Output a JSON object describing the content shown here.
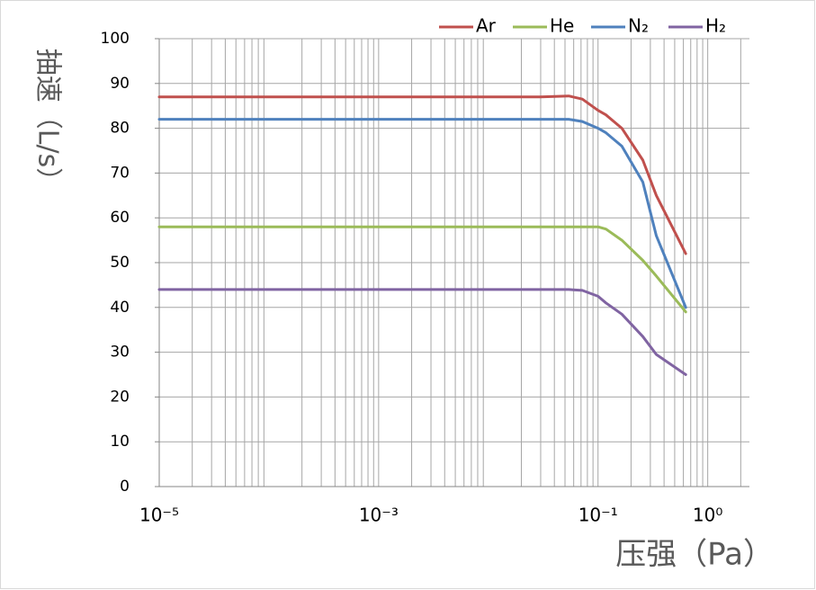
{
  "chart_data": {
    "type": "line",
    "y_label": "抽速（L/s）",
    "x_label": "压强（Pa）",
    "x": [
      1e-05,
      0.001,
      0.01,
      0.03,
      0.054,
      0.072,
      0.1,
      0.118,
      0.165,
      0.256,
      0.34,
      0.63
    ],
    "series": [
      {
        "name": "Ar",
        "color": "#c0504d",
        "values": [
          87,
          87,
          87,
          87,
          87.2,
          86.5,
          84,
          83,
          80,
          72.9,
          65,
          52
        ]
      },
      {
        "name": "He",
        "color": "#9bbb59",
        "values": [
          58,
          58,
          58,
          58,
          58,
          58,
          58,
          57.5,
          55,
          50.5,
          47,
          39
        ]
      },
      {
        "name": "N₂",
        "color": "#4f81bd",
        "values": [
          82,
          82,
          82,
          82,
          82,
          81.5,
          80,
          79,
          76,
          68,
          56,
          40
        ]
      },
      {
        "name": "H₂",
        "color": "#8064a2",
        "values": [
          44,
          44,
          44,
          44,
          44,
          43.8,
          42.5,
          41,
          38.5,
          33.5,
          29.5,
          25
        ]
      }
    ],
    "xlog": true,
    "xlim": [
      1e-05,
      2.4
    ],
    "xticks": [
      {
        "value": 1e-05,
        "label": "10⁻⁵"
      },
      {
        "value": 0.001,
        "label": "10⁻³"
      },
      {
        "value": 0.1,
        "label": "10⁻¹"
      },
      {
        "value": 1,
        "label": "10⁰"
      }
    ],
    "ylim": [
      0,
      100
    ],
    "yticks": [
      0,
      10,
      20,
      30,
      40,
      50,
      60,
      70,
      80,
      90,
      100
    ],
    "grid": true,
    "legend": "top-right"
  }
}
